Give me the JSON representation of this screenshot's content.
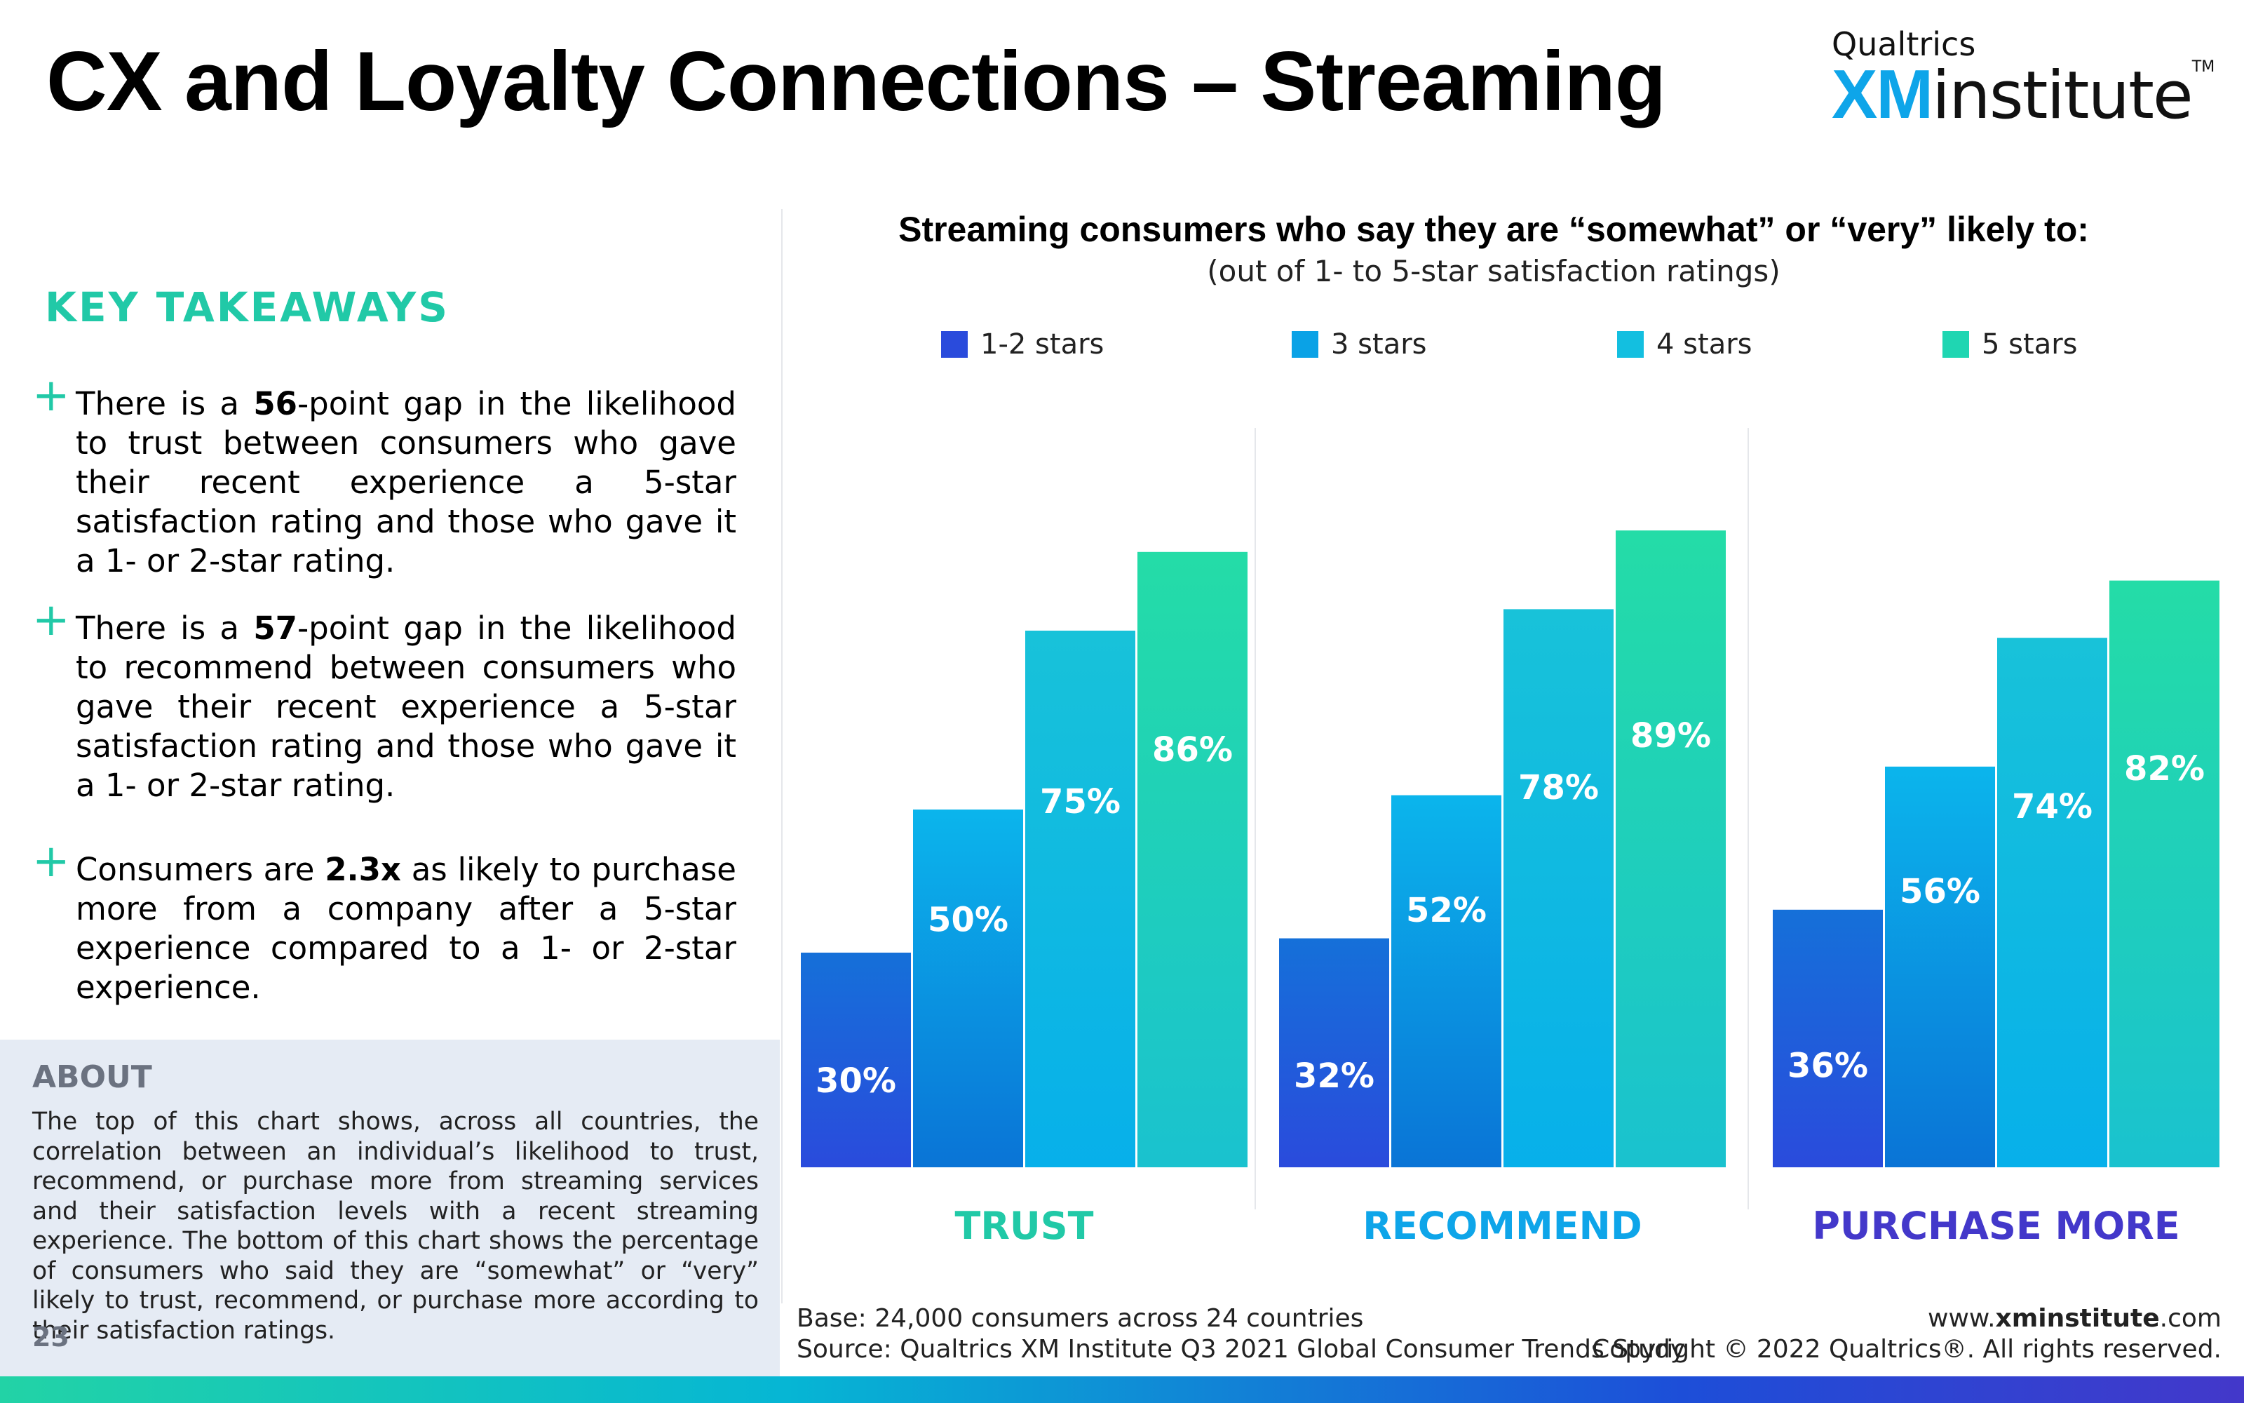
{
  "page": {
    "title": "CX and Loyalty Connections – Streaming",
    "page_number": "23",
    "colors": {
      "accent": "#21c9a7",
      "trust": "#21c9a7",
      "recommend": "#0ea5e9",
      "purchase": "#4338ca"
    }
  },
  "logo": {
    "top": "Qualtrics",
    "xm": "XM",
    "institute": "institute",
    "tm": "TM"
  },
  "takeaways": {
    "heading": "KEY TAKEAWAYS",
    "items": [
      {
        "pre": "There is a ",
        "bold": "56",
        "post": "-point gap in the likelihood to trust between consumers who gave their recent experience a 5-star satisfaction rating and those who gave it a 1- or 2-star rating."
      },
      {
        "pre": "There is a ",
        "bold": "57",
        "post": "-point gap in the likelihood to recommend between consumers who gave their recent experience a 5-star satisfaction rating and those who gave it a 1- or 2-star rating."
      },
      {
        "pre": "Consumers are ",
        "bold": "2.3x",
        "post": " as likely to purchase more from a company after a 5-star experience compared to a 1- or 2-star experience."
      }
    ]
  },
  "about": {
    "heading": "ABOUT",
    "text": "The top of this chart shows, across all countries, the correlation between an individual’s likelihood to trust, recommend, or purchase more from streaming services and their satisfaction levels with a recent streaming experience. The bottom of this chart shows the percentage of consumers who said they are “somewhat” or “very” likely to trust, recommend, or purchase more according to their satisfaction ratings."
  },
  "chart_data": {
    "type": "bar",
    "title": "Streaming consumers who say they are “somewhat” or “very” likely to:",
    "subtitle": "(out of 1- to 5-star satisfaction ratings)",
    "categories": [
      "TRUST",
      "RECOMMEND",
      "PURCHASE MORE"
    ],
    "series": [
      {
        "name": "1-2 stars",
        "values": [
          30,
          32,
          36
        ],
        "labels": [
          "30%",
          "32%",
          "36%"
        ],
        "color_top": "#1570d9",
        "color_bottom": "#2a4bdc"
      },
      {
        "name": "3 stars",
        "values": [
          50,
          52,
          56
        ],
        "labels": [
          "50%",
          "52%",
          "56%"
        ],
        "color_top": "#0bb5ec",
        "color_bottom": "#0a74d6"
      },
      {
        "name": "4 stars",
        "values": [
          75,
          78,
          74
        ],
        "labels": [
          "75%",
          "78%",
          "74%"
        ],
        "color_top": "#18c2d9",
        "color_bottom": "#07b0ea"
      },
      {
        "name": "5 stars",
        "values": [
          86,
          89,
          82
        ],
        "labels": [
          "86%",
          "89%",
          "82%"
        ],
        "color_top": "#24dca7",
        "color_bottom": "#1ac2cf"
      }
    ],
    "legend_colors": [
      "#2a4bdc",
      "#0aa2e6",
      "#13bfe0",
      "#1fd6b2"
    ],
    "category_colors": [
      "#21c9a7",
      "#0ea5e9",
      "#4338ca"
    ],
    "ylim": [
      0,
      100
    ],
    "grid": false,
    "legend_position": "top"
  },
  "footer": {
    "base": "Base: 24,000 consumers across 24 countries",
    "source": "Source: Qualtrics XM Institute Q3 2021 Global Consumer Trends Study",
    "url_pre": "www.",
    "url_bold": "xminstitute",
    "url_post": ".com",
    "copyright": "Copyright © 2022 Qualtrics®. All rights reserved."
  }
}
